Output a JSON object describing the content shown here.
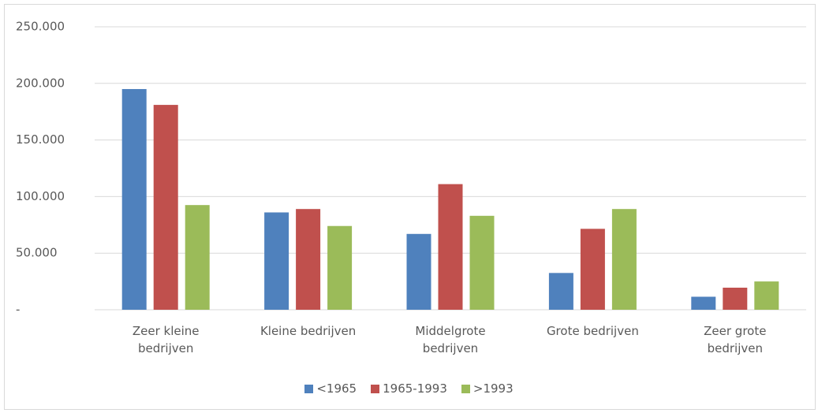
{
  "chart_data": {
    "type": "bar",
    "categories": [
      "Zeer kleine bedrijven",
      "Kleine bedrijven",
      "Middelgrote bedrijven",
      "Grote bedrijven",
      "Zeer grote bedrijven"
    ],
    "series": [
      {
        "name": "<1965",
        "color": "#4f81bd",
        "values": [
          195000,
          86000,
          67000,
          32500,
          11500
        ]
      },
      {
        "name": "1965-1993",
        "color": "#c0504d",
        "values": [
          181000,
          89000,
          111000,
          71500,
          19500
        ]
      },
      {
        "name": ">1993",
        "color": "#9bbb59",
        "values": [
          92500,
          74000,
          83000,
          89000,
          25000
        ]
      }
    ],
    "ylim": [
      0,
      250000
    ],
    "yticks": [
      {
        "value": 0,
        "label": "-"
      },
      {
        "value": 50000,
        "label": "50.000"
      },
      {
        "value": 100000,
        "label": "100.000"
      },
      {
        "value": 150000,
        "label": "150.000"
      },
      {
        "value": 200000,
        "label": "200.000"
      },
      {
        "value": 250000,
        "label": "250.000"
      }
    ],
    "grid": true,
    "legend": "bottom"
  }
}
